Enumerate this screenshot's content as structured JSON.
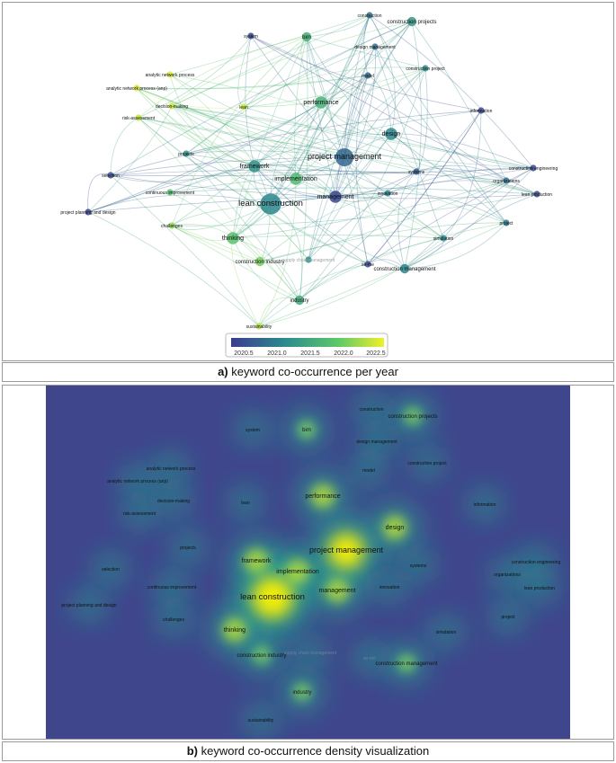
{
  "panel_a": {
    "caption_letter": "a)",
    "caption_text": " keyword co-occurrence per year",
    "legend_ticks": [
      "2020.5",
      "2021.0",
      "2021.5",
      "2022.0",
      "2022.5"
    ],
    "colors": {
      "low": "#3b3b8f",
      "mid": "#2a9d8f",
      "high": "#f0f02a"
    }
  },
  "panel_b": {
    "caption_letter": "b)",
    "caption_text": " keyword co-occurrence density visualization",
    "colors": {
      "background": "#3f468c",
      "glow": "#23a88e",
      "hot": "#fff200"
    }
  },
  "keywords": [
    {
      "id": "construction",
      "label": "construction",
      "year": 2021.0,
      "weight": 1
    },
    {
      "id": "construction-projects",
      "label": "construction projects",
      "year": 2021.4,
      "weight": 2
    },
    {
      "id": "system",
      "label": "system",
      "year": 2020.6,
      "weight": 1
    },
    {
      "id": "bim",
      "label": "bim",
      "year": 2021.7,
      "weight": 2
    },
    {
      "id": "design-management",
      "label": "design management",
      "year": 2021.0,
      "weight": 1
    },
    {
      "id": "construction-project",
      "label": "construction project",
      "year": 2021.3,
      "weight": 1
    },
    {
      "id": "model",
      "label": "model",
      "year": 2020.9,
      "weight": 1
    },
    {
      "id": "analytic-network-process",
      "label": "analytic network process",
      "year": 2022.6,
      "weight": 1
    },
    {
      "id": "anp",
      "label": "analytic network process (anp)",
      "year": 2022.6,
      "weight": 1
    },
    {
      "id": "decision-making",
      "label": "decision-making",
      "year": 2022.5,
      "weight": 1
    },
    {
      "id": "lean",
      "label": "lean",
      "year": 2022.5,
      "weight": 1
    },
    {
      "id": "performance",
      "label": "performance",
      "year": 2021.7,
      "weight": 3
    },
    {
      "id": "information",
      "label": "information",
      "year": 2020.6,
      "weight": 1
    },
    {
      "id": "risk-assessment",
      "label": "risk-assessment",
      "year": 2022.5,
      "weight": 1
    },
    {
      "id": "design",
      "label": "design",
      "year": 2021.2,
      "weight": 3
    },
    {
      "id": "projects",
      "label": "projects",
      "year": 2021.3,
      "weight": 1
    },
    {
      "id": "project-management",
      "label": "project management",
      "year": 2020.9,
      "weight": 5
    },
    {
      "id": "framework",
      "label": "framework",
      "year": 2021.3,
      "weight": 3
    },
    {
      "id": "systems",
      "label": "systems",
      "year": 2020.8,
      "weight": 1
    },
    {
      "id": "construction-engineering",
      "label": "construction engineering",
      "year": 2020.6,
      "weight": 1
    },
    {
      "id": "selection",
      "label": "selection",
      "year": 2020.7,
      "weight": 1
    },
    {
      "id": "organizations",
      "label": "organizations",
      "year": 2021.0,
      "weight": 1
    },
    {
      "id": "implementation",
      "label": "implementation",
      "year": 2021.8,
      "weight": 3
    },
    {
      "id": "continuous-improvement",
      "label": "continuous improvement",
      "year": 2021.9,
      "weight": 1
    },
    {
      "id": "lean-production",
      "label": "lean production",
      "year": 2020.6,
      "weight": 1
    },
    {
      "id": "management",
      "label": "management",
      "year": 2020.6,
      "weight": 3
    },
    {
      "id": "innovation",
      "label": "innovation",
      "year": 2021.2,
      "weight": 1
    },
    {
      "id": "lean-construction",
      "label": "lean construction",
      "year": 2021.2,
      "weight": 6
    },
    {
      "id": "project-planning-and-design",
      "label": "project planning and design",
      "year": 2020.6,
      "weight": 1
    },
    {
      "id": "challenges",
      "label": "challenges",
      "year": 2022.2,
      "weight": 1
    },
    {
      "id": "project",
      "label": "project",
      "year": 2021.1,
      "weight": 1
    },
    {
      "id": "thinking",
      "label": "thinking",
      "year": 2021.9,
      "weight": 3
    },
    {
      "id": "simulation",
      "label": "simulation",
      "year": 2021.3,
      "weight": 1
    },
    {
      "id": "construction-industry",
      "label": "construction industry",
      "year": 2022.1,
      "weight": 2
    },
    {
      "id": "supply-chain-management",
      "label": "supply chain management",
      "year": 2021.3,
      "weight": 1
    },
    {
      "id": "se-me",
      "label": "se-me",
      "year": 2020.6,
      "weight": 1
    },
    {
      "id": "construction-management",
      "label": "construction management",
      "year": 2021.2,
      "weight": 2
    },
    {
      "id": "industry",
      "label": "industry",
      "year": 2021.6,
      "weight": 2
    },
    {
      "id": "sustainability",
      "label": "sustainability",
      "year": 2022.4,
      "weight": 1
    }
  ]
}
